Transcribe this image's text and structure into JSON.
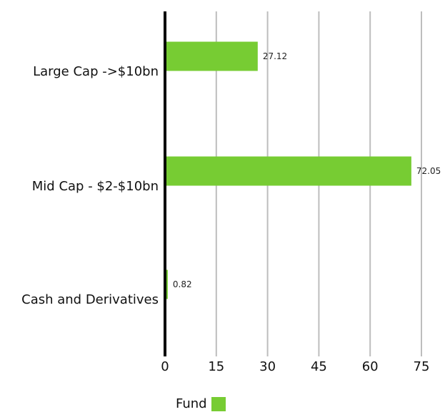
{
  "chart_data": {
    "type": "bar",
    "orientation": "horizontal",
    "categories": [
      "Large Cap ->$10bn",
      "Mid Cap - $2-$10bn",
      "Cash and Derivatives"
    ],
    "series": [
      {
        "name": "Fund",
        "values": [
          27.12,
          72.05,
          0.82
        ],
        "value_labels": [
          "27.12",
          "72.05",
          "0.82"
        ]
      }
    ],
    "xlim": [
      0,
      75
    ],
    "xticks": [
      "0",
      "15",
      "30",
      "45",
      "60",
      "75"
    ],
    "grid": "vertical",
    "legend_position": "bottom",
    "colors": {
      "bar": "#77cc33",
      "grid": "#bdbdbd",
      "axis": "#000000"
    }
  },
  "legend": {
    "label": "Fund"
  }
}
